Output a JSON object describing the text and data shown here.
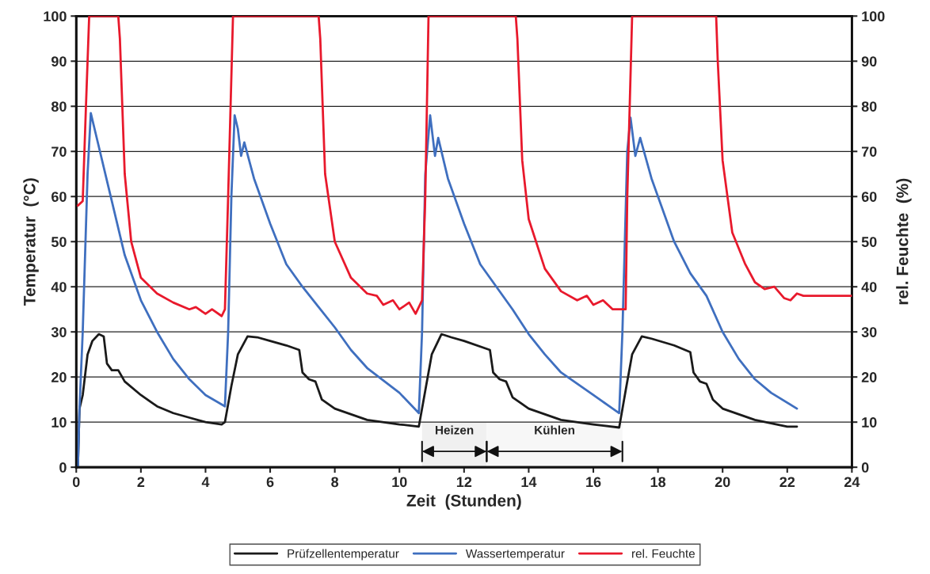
{
  "chart_data": {
    "type": "line",
    "xlabel": "Zeit  (Stunden)",
    "ylabel": "Temperatur  (°C)",
    "y2label": "rel. Feuchte  (%)",
    "xlim": [
      0,
      24
    ],
    "xticks": [
      0,
      2,
      4,
      6,
      8,
      10,
      12,
      14,
      16,
      18,
      20,
      22,
      24
    ],
    "ylim": [
      0,
      100
    ],
    "yticks": [
      0,
      10,
      20,
      30,
      40,
      50,
      60,
      70,
      80,
      90,
      100
    ],
    "y2lim": [
      0,
      100
    ],
    "y2ticks": [
      0,
      10,
      20,
      30,
      40,
      50,
      60,
      70,
      80,
      90,
      100
    ],
    "grid": "y",
    "legend": "bottom",
    "marker": "none",
    "line_style": "solid",
    "bands": [
      {
        "axis": "x",
        "from": 10.7,
        "to": 12.7,
        "label": "Heizen",
        "color": "#f0f0f0"
      },
      {
        "axis": "x",
        "from": 12.7,
        "to": 16.9,
        "label": "Kühlen",
        "color": "#f7f7f7"
      }
    ],
    "series": [
      {
        "name": "Prüfzellentemperatur",
        "color": "#1a1a1a",
        "x": [
          0.05,
          0.1,
          0.2,
          0.35,
          0.5,
          0.7,
          0.85,
          0.95,
          1.1,
          1.3,
          1.5,
          2,
          2.5,
          3,
          3.5,
          4,
          4.5,
          4.6,
          4.8,
          5,
          5.3,
          5.6,
          6,
          6.5,
          6.9,
          7,
          7.2,
          7.4,
          7.6,
          8,
          9,
          10,
          10.6,
          10.8,
          11,
          11.3,
          11.6,
          12,
          12.8,
          12.9,
          13.1,
          13.3,
          13.5,
          14,
          15,
          16,
          16.8,
          17,
          17.2,
          17.5,
          17.8,
          18.5,
          19,
          19.1,
          19.3,
          19.5,
          19.7,
          20,
          21,
          22,
          22.3
        ],
        "values": [
          0,
          13,
          16,
          25,
          28,
          29.5,
          29,
          23,
          21.5,
          21.5,
          19,
          16,
          13.5,
          12,
          11,
          10,
          9.5,
          10,
          18,
          25,
          29,
          28.8,
          28,
          27,
          26,
          21,
          19.5,
          19,
          15,
          13,
          10.5,
          9.5,
          9,
          17,
          25,
          29.5,
          28.8,
          28,
          26,
          21,
          19.5,
          19,
          15.5,
          13,
          10.5,
          9.5,
          8.8,
          17,
          25,
          29,
          28.5,
          27,
          25.5,
          21,
          19,
          18.5,
          15,
          13,
          10.5,
          9,
          9
        ]
      },
      {
        "name": "Wassertemperatur",
        "color": "#3f6fbf",
        "x": [
          0.05,
          0.1,
          0.2,
          0.35,
          0.45,
          0.6,
          1,
          1.5,
          2,
          2.5,
          3,
          3.5,
          4,
          4.6,
          4.7,
          4.8,
          4.9,
          5,
          5.1,
          5.2,
          5.5,
          6,
          6.5,
          7,
          7.5,
          8,
          8.5,
          9,
          10,
          10.6,
          10.7,
          10.8,
          10.95,
          11.1,
          11.2,
          11.5,
          12,
          12.5,
          13,
          13.5,
          14,
          14.5,
          15,
          16,
          16.8,
          16.9,
          17.05,
          17.15,
          17.3,
          17.45,
          17.8,
          18.5,
          19,
          19.5,
          20,
          20.5,
          21,
          21.5,
          22.3
        ],
        "values": [
          0,
          13,
          30,
          65,
          78.5,
          74,
          62,
          47,
          37,
          30,
          24,
          19.5,
          16,
          13.5,
          30,
          60,
          78,
          75,
          69,
          72,
          64,
          54,
          45,
          40,
          35.5,
          31,
          26,
          22,
          16.5,
          12,
          30,
          65,
          78,
          69,
          73,
          64,
          54,
          45,
          40,
          35,
          29.5,
          25,
          21,
          16,
          12,
          30,
          70,
          77.5,
          69,
          73,
          64,
          50,
          43,
          38,
          30,
          24,
          19.5,
          16.5,
          13
        ]
      },
      {
        "name": "rel. Feuchte",
        "color": "#e8192c",
        "axis": "y2",
        "x": [
          0.05,
          0.2,
          0.3,
          0.4,
          1.3,
          1.35,
          1.5,
          1.7,
          2,
          2.5,
          3,
          3.5,
          3.7,
          4,
          4.2,
          4.5,
          4.6,
          4.7,
          4.85,
          7.5,
          7.55,
          7.7,
          8,
          8.5,
          9,
          9.3,
          9.5,
          9.8,
          10,
          10.3,
          10.5,
          10.7,
          10.8,
          10.9,
          13.6,
          13.65,
          13.8,
          14,
          14.5,
          15,
          15.5,
          15.8,
          16,
          16.3,
          16.6,
          17,
          17.05,
          17.2,
          19.8,
          19.85,
          20,
          20.3,
          20.7,
          21,
          21.3,
          21.6,
          21.9,
          22.1,
          22.3,
          22.5,
          24
        ],
        "values": [
          58,
          59,
          80,
          100,
          100,
          95,
          65,
          50,
          42,
          38.5,
          36.5,
          35,
          35.5,
          34,
          35,
          33.5,
          35,
          60,
          100,
          100,
          95,
          65,
          50,
          42,
          38.5,
          38,
          36,
          37,
          35,
          36.5,
          34,
          37,
          60,
          100,
          100,
          95,
          68,
          55,
          44,
          39,
          37,
          38,
          36,
          37,
          35,
          35,
          60,
          100,
          100,
          90,
          68,
          52,
          45,
          41,
          39.5,
          40,
          37.5,
          37,
          38.5,
          38,
          38
        ]
      }
    ]
  }
}
